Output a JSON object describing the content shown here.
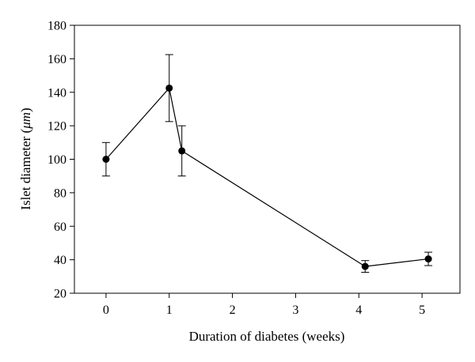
{
  "chart_data": {
    "type": "scatter",
    "xlabel": "Duration of diabetes (weeks)",
    "ylabel_main": "Islet diameter (",
    "ylabel_unit": "μm",
    "ylabel_close": ")",
    "xlim": [
      -0.5,
      5.6
    ],
    "ylim": [
      20,
      180
    ],
    "xticks": [
      0,
      1,
      2,
      3,
      4,
      5
    ],
    "yticks": [
      20,
      40,
      60,
      80,
      100,
      120,
      140,
      160,
      180
    ],
    "grid": false,
    "series": [
      {
        "x": [
          0,
          1,
          1.2,
          4.1,
          5.1
        ],
        "y": [
          100,
          142.5,
          105,
          36,
          40.5
        ],
        "err_low": [
          10,
          20,
          15,
          3.5,
          4
        ],
        "err_high": [
          10,
          20,
          15,
          3.5,
          4
        ],
        "marker": "circle",
        "line": "solid",
        "color": "#000000"
      }
    ]
  }
}
